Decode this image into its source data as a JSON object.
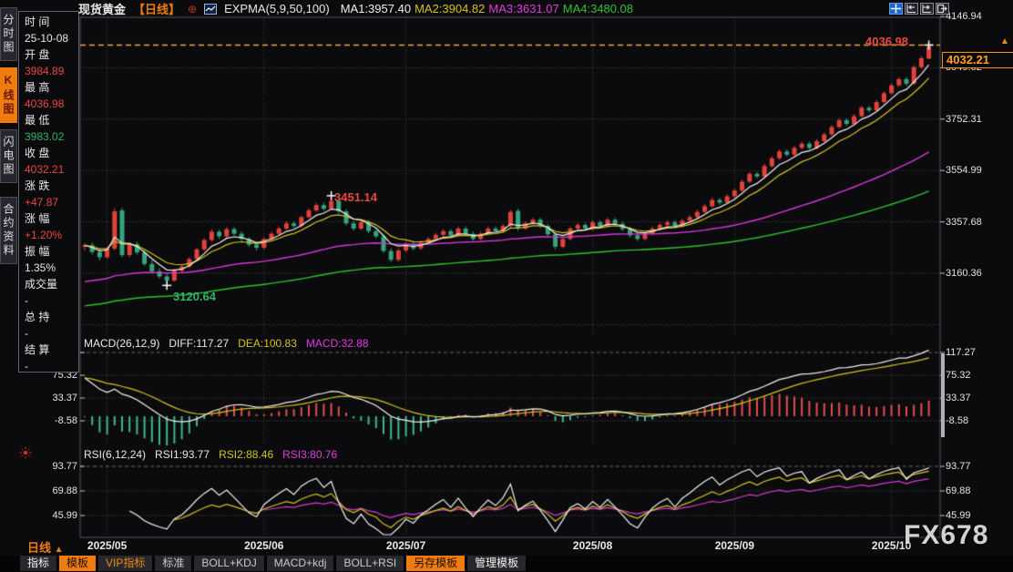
{
  "colors": {
    "accent_orange": "#f07c10",
    "up_red": "#e0433c",
    "down_green": "#36a57c",
    "ma1_white": "#f0f0f0",
    "ma2_yellow": "#d4c41c",
    "ma3_magenta": "#d838d8",
    "ma4_green": "#2dc32d",
    "red_text": "#e8483f",
    "green_text": "#2fb46c",
    "grid": "#46464e",
    "border": "#55555e",
    "tag_orange": "#ffa01e",
    "hist_red": "#e0504a",
    "hist_green": "#3cb98e",
    "sparkle_red": "#e03030",
    "dashed_high_line": "#f0a24a"
  },
  "icons": {
    "up_arrow": "▲",
    "circle_plus": "⊕"
  },
  "header": {
    "symbol": "现货黄金",
    "period_tag": "【日线】",
    "indicator_label": "EXPMA(5,9,50,100)",
    "ma_values": [
      {
        "label": "MA1:3957.40",
        "color": "#f0f0f0"
      },
      {
        "label": "MA2:3904.82",
        "color": "#d4c41c"
      },
      {
        "label": "MA3:3631.07",
        "color": "#e23ce2"
      },
      {
        "label": "MA4:3480.08",
        "color": "#2dc32d"
      }
    ]
  },
  "left_tabs": [
    {
      "label": "分时图",
      "name": "tab-intraday",
      "active": false
    },
    {
      "label": "K线图",
      "name": "tab-kline",
      "active": true
    },
    {
      "label": "闪电图",
      "name": "tab-flash",
      "active": false
    },
    {
      "label": "合约资料",
      "name": "tab-contract-info",
      "active": false
    }
  ],
  "quote_panel": {
    "rows": [
      {
        "label": "时 间",
        "value": "25-10-08",
        "cls": "white"
      },
      {
        "label": "开 盘",
        "value": "3984.89",
        "cls": "red"
      },
      {
        "label": "最 高",
        "value": "4036.98",
        "cls": "red"
      },
      {
        "label": "最 低",
        "value": "3983.02",
        "cls": "green"
      },
      {
        "label": "收 盘",
        "value": "4032.21",
        "cls": "red"
      },
      {
        "label": "涨 跌",
        "value": "+47.87",
        "cls": "red"
      },
      {
        "label": "涨 幅",
        "value": "+1.20%",
        "cls": "red"
      },
      {
        "label": "振 幅",
        "value": "1.35%",
        "cls": "white"
      },
      {
        "label": "成交量",
        "value": "-",
        "cls": "white"
      },
      {
        "label": "总 持",
        "value": "-",
        "cls": "white"
      },
      {
        "label": "结 算",
        "value": "-",
        "cls": "white"
      }
    ]
  },
  "price_tag": {
    "value": "4032.21"
  },
  "annotations": {
    "session_high": "4036.98",
    "swing_high": "3451.14",
    "swing_low": "3120.64"
  },
  "macd": {
    "title": "MACD(26,12,9)",
    "diff_label": "DIFF:117.27",
    "dea_label": "DEA:100.83",
    "macd_label": "MACD:32.88"
  },
  "rsi": {
    "title": "RSI(6,12,24)",
    "rsi1_label": "RSI1:93.77",
    "rsi2_label": "RSI2:88.46",
    "rsi3_label": "RSI3:80.76"
  },
  "x_axis": {
    "period_label": "日线"
  },
  "watermark": {
    "text": "FX678"
  },
  "toolbar": {
    "items": [
      {
        "label": "指标",
        "name": "toolbar-indicators",
        "variant": "plain-white"
      },
      {
        "label": "模板",
        "name": "toolbar-template",
        "variant": "orange"
      },
      {
        "label": "VIP指标",
        "name": "toolbar-vip-indicators",
        "variant": "orange-text"
      },
      {
        "label": "标准",
        "name": "toolbar-standard",
        "variant": "plain"
      },
      {
        "label": "BOLL+KDJ",
        "name": "toolbar-boll-kdj",
        "variant": "plain"
      },
      {
        "label": "MACD+kdj",
        "name": "toolbar-macd-kdj",
        "variant": "plain"
      },
      {
        "label": "BOLL+RSI",
        "name": "toolbar-boll-rsi",
        "variant": "plain"
      },
      {
        "label": "另存模板",
        "name": "toolbar-save-template",
        "variant": "orange"
      },
      {
        "label": "管理模板",
        "name": "toolbar-manage-template",
        "variant": "plain-white"
      }
    ]
  },
  "chart_data": {
    "type": "candlestick",
    "title": "现货黄金 日线",
    "x_labels": [
      "2025/05",
      "2025/06",
      "2025/07",
      "2025/08",
      "2025/09",
      "2025/10"
    ],
    "month_start_indices": [
      3,
      24,
      43,
      68,
      87,
      108
    ],
    "price_axis_ticks": [
      4146.94,
      3949.62,
      3752.31,
      3554.99,
      3357.68,
      3160.36
    ],
    "macd_axis_ticks": [
      117.27,
      75.32,
      33.37,
      -8.58
    ],
    "rsi_axis_ticks": [
      93.77,
      69.88,
      45.99
    ],
    "session_high_line": 4036.98,
    "last_price": 4032.21,
    "swing_high": {
      "index": 33,
      "price": 3451.14
    },
    "swing_low": {
      "index": 11,
      "price": 3120.64
    },
    "overlays": {
      "expma_periods": [
        5,
        9,
        50,
        100
      ],
      "ema_seeds": {
        "ema50": 3122,
        "ema100": 3030
      },
      "macd_params": [
        26,
        12,
        9
      ],
      "macd_seed_offsets": {
        "ema12": 45,
        "ema26": -35
      },
      "rsi_params": [
        6,
        12,
        24
      ]
    },
    "candles": [
      [
        3262,
        3275,
        3248,
        3268
      ],
      [
        3268,
        3278,
        3232,
        3242
      ],
      [
        3242,
        3252,
        3210,
        3222
      ],
      [
        3222,
        3262,
        3215,
        3255
      ],
      [
        3255,
        3410,
        3248,
        3398
      ],
      [
        3402,
        3412,
        3222,
        3230
      ],
      [
        3230,
        3280,
        3222,
        3272
      ],
      [
        3272,
        3282,
        3232,
        3240
      ],
      [
        3240,
        3250,
        3188,
        3196
      ],
      [
        3196,
        3210,
        3158,
        3168
      ],
      [
        3168,
        3180,
        3140,
        3148
      ],
      [
        3148,
        3158,
        3120.64,
        3132
      ],
      [
        3132,
        3178,
        3128,
        3170
      ],
      [
        3170,
        3196,
        3162,
        3186
      ],
      [
        3186,
        3222,
        3180,
        3215
      ],
      [
        3215,
        3258,
        3210,
        3252
      ],
      [
        3252,
        3295,
        3246,
        3288
      ],
      [
        3288,
        3330,
        3282,
        3320
      ],
      [
        3320,
        3328,
        3292,
        3302
      ],
      [
        3302,
        3338,
        3296,
        3330
      ],
      [
        3330,
        3338,
        3305,
        3312
      ],
      [
        3312,
        3320,
        3284,
        3292
      ],
      [
        3292,
        3300,
        3262,
        3270
      ],
      [
        3270,
        3278,
        3248,
        3258
      ],
      [
        3258,
        3298,
        3252,
        3292
      ],
      [
        3292,
        3320,
        3286,
        3312
      ],
      [
        3312,
        3340,
        3306,
        3332
      ],
      [
        3332,
        3360,
        3326,
        3352
      ],
      [
        3352,
        3360,
        3334,
        3342
      ],
      [
        3342,
        3382,
        3336,
        3376
      ],
      [
        3376,
        3410,
        3370,
        3402
      ],
      [
        3402,
        3430,
        3396,
        3422
      ],
      [
        3422,
        3432,
        3400,
        3408
      ],
      [
        3408,
        3451.14,
        3402,
        3438
      ],
      [
        3438,
        3446,
        3390,
        3398
      ],
      [
        3398,
        3406,
        3344,
        3352
      ],
      [
        3352,
        3362,
        3324,
        3332
      ],
      [
        3332,
        3364,
        3326,
        3356
      ],
      [
        3356,
        3364,
        3314,
        3322
      ],
      [
        3322,
        3330,
        3294,
        3302
      ],
      [
        3302,
        3310,
        3238,
        3246
      ],
      [
        3246,
        3256,
        3204,
        3212
      ],
      [
        3212,
        3256,
        3206,
        3248
      ],
      [
        3248,
        3280,
        3242,
        3272
      ],
      [
        3272,
        3280,
        3248,
        3256
      ],
      [
        3256,
        3286,
        3250,
        3278
      ],
      [
        3278,
        3300,
        3272,
        3292
      ],
      [
        3292,
        3316,
        3286,
        3308
      ],
      [
        3308,
        3330,
        3302,
        3322
      ],
      [
        3322,
        3330,
        3298,
        3306
      ],
      [
        3306,
        3340,
        3300,
        3332
      ],
      [
        3332,
        3340,
        3304,
        3312
      ],
      [
        3312,
        3320,
        3284,
        3292
      ],
      [
        3292,
        3320,
        3286,
        3312
      ],
      [
        3312,
        3340,
        3306,
        3332
      ],
      [
        3332,
        3340,
        3314,
        3322
      ],
      [
        3322,
        3350,
        3316,
        3342
      ],
      [
        3342,
        3404,
        3336,
        3396
      ],
      [
        3400,
        3408,
        3324,
        3332
      ],
      [
        3332,
        3360,
        3326,
        3352
      ],
      [
        3352,
        3374,
        3346,
        3366
      ],
      [
        3366,
        3374,
        3334,
        3342
      ],
      [
        3342,
        3350,
        3300,
        3310
      ],
      [
        3310,
        3318,
        3252,
        3262
      ],
      [
        3262,
        3300,
        3256,
        3292
      ],
      [
        3292,
        3340,
        3286,
        3332
      ],
      [
        3332,
        3354,
        3326,
        3346
      ],
      [
        3346,
        3354,
        3324,
        3332
      ],
      [
        3332,
        3364,
        3326,
        3356
      ],
      [
        3356,
        3364,
        3334,
        3342
      ],
      [
        3342,
        3374,
        3336,
        3366
      ],
      [
        3366,
        3374,
        3342,
        3350
      ],
      [
        3350,
        3358,
        3322,
        3330
      ],
      [
        3330,
        3338,
        3298,
        3306
      ],
      [
        3306,
        3314,
        3284,
        3292
      ],
      [
        3292,
        3320,
        3286,
        3312
      ],
      [
        3312,
        3340,
        3306,
        3332
      ],
      [
        3332,
        3354,
        3326,
        3346
      ],
      [
        3346,
        3364,
        3340,
        3356
      ],
      [
        3356,
        3364,
        3334,
        3342
      ],
      [
        3342,
        3370,
        3336,
        3362
      ],
      [
        3362,
        3384,
        3356,
        3376
      ],
      [
        3376,
        3404,
        3370,
        3396
      ],
      [
        3396,
        3426,
        3390,
        3418
      ],
      [
        3418,
        3450,
        3412,
        3442
      ],
      [
        3442,
        3450,
        3424,
        3432
      ],
      [
        3432,
        3464,
        3426,
        3456
      ],
      [
        3456,
        3486,
        3450,
        3478
      ],
      [
        3478,
        3520,
        3472,
        3512
      ],
      [
        3512,
        3550,
        3506,
        3542
      ],
      [
        3542,
        3550,
        3524,
        3532
      ],
      [
        3532,
        3580,
        3526,
        3572
      ],
      [
        3572,
        3610,
        3566,
        3602
      ],
      [
        3602,
        3636,
        3596,
        3628
      ],
      [
        3628,
        3636,
        3608,
        3616
      ],
      [
        3616,
        3650,
        3610,
        3642
      ],
      [
        3642,
        3666,
        3636,
        3658
      ],
      [
        3658,
        3666,
        3634,
        3642
      ],
      [
        3642,
        3676,
        3636,
        3668
      ],
      [
        3668,
        3702,
        3662,
        3694
      ],
      [
        3694,
        3730,
        3688,
        3722
      ],
      [
        3722,
        3756,
        3716,
        3748
      ],
      [
        3748,
        3756,
        3726,
        3734
      ],
      [
        3734,
        3772,
        3728,
        3764
      ],
      [
        3764,
        3804,
        3758,
        3796
      ],
      [
        3796,
        3804,
        3778,
        3786
      ],
      [
        3786,
        3826,
        3780,
        3818
      ],
      [
        3818,
        3860,
        3812,
        3852
      ],
      [
        3852,
        3890,
        3846,
        3882
      ],
      [
        3882,
        3914,
        3876,
        3906
      ],
      [
        3906,
        3914,
        3880,
        3888
      ],
      [
        3888,
        3960,
        3884,
        3952
      ],
      [
        3952,
        3994,
        3946,
        3986
      ],
      [
        3984.89,
        4036.98,
        3983.02,
        4032.21
      ]
    ]
  }
}
